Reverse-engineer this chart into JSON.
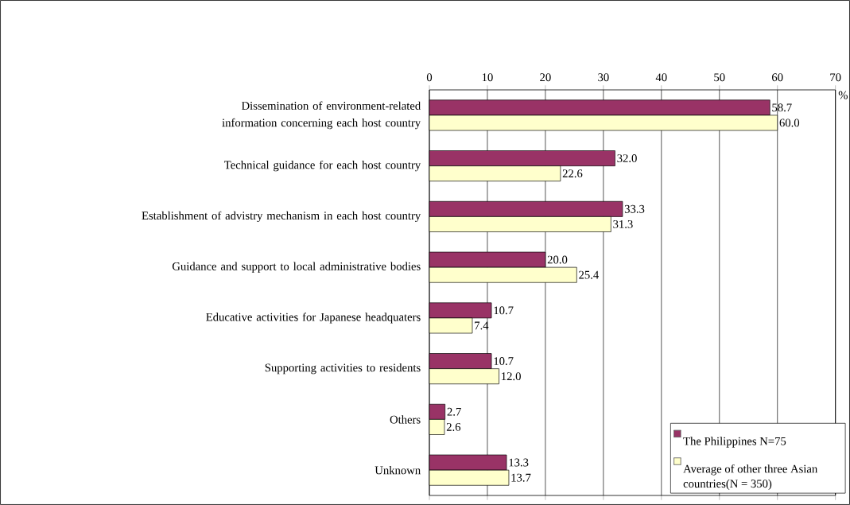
{
  "chart_data": {
    "type": "bar",
    "orientation": "horizontal",
    "categories": [
      "Dissemination of environment-related information concerning each host country",
      "Technical guidance for each host country",
      "Establishment of advistry mechanism in each host country",
      "Guidance and support to local administrative bodies",
      "Educative activities for Japanese headquaters",
      "Supporting activities to residents",
      "Others",
      "Unknown"
    ],
    "series": [
      {
        "name": "The Philippines N=75",
        "color": "#993366",
        "values": [
          58.7,
          32.0,
          33.3,
          20.0,
          10.7,
          10.7,
          2.7,
          13.3
        ],
        "value_labels": [
          "58.7",
          "32.0",
          "33.3",
          "20.0",
          "10.7",
          "10.7",
          "2.7",
          "13.3"
        ]
      },
      {
        "name": "Average of other three Asian countries(N = 350)",
        "color": "#ffffcc",
        "values": [
          60.0,
          22.6,
          31.3,
          25.4,
          7.4,
          12.0,
          2.6,
          13.7
        ],
        "value_labels": [
          "60.0",
          "22.6",
          "31.3",
          "25.4",
          "7.4",
          "12.0",
          "2.6",
          "13.7"
        ]
      }
    ],
    "xlim": [
      0,
      70
    ],
    "xticks": [
      0,
      10,
      20,
      30,
      40,
      50,
      60,
      70
    ],
    "xlabel": "%",
    "grid": "x",
    "legend": "bottom right"
  }
}
